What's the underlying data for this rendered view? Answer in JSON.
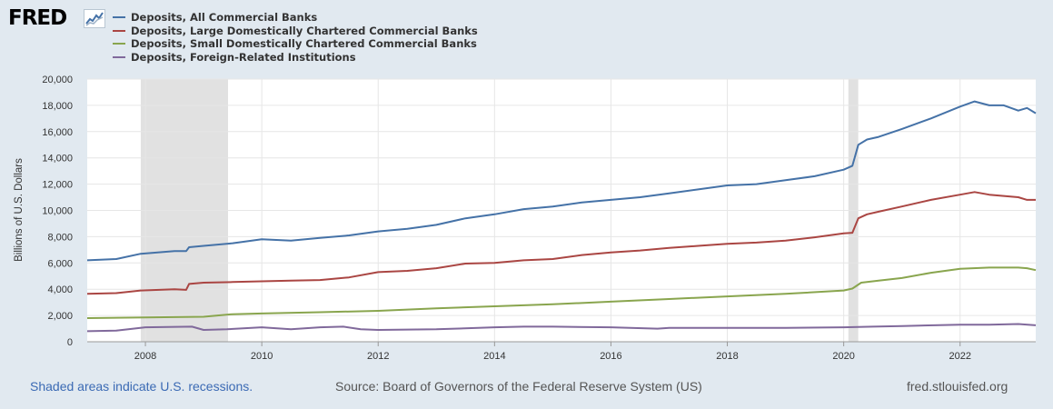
{
  "header": {
    "logo_text": "FRED",
    "logo_icon": "fred-trend-icon"
  },
  "legend": {
    "items": [
      {
        "label": "Deposits, All Commercial Banks",
        "color": "#4572a7"
      },
      {
        "label": "Deposits, Large Domestically Chartered Commercial Banks",
        "color": "#aa4643"
      },
      {
        "label": "Deposits, Small Domestically Chartered Commercial Banks",
        "color": "#89a54e"
      },
      {
        "label": "Deposits, Foreign-Related Institutions",
        "color": "#80699b"
      }
    ]
  },
  "footer": {
    "recession_note": "Shaded areas indicate U.S. recessions.",
    "source": "Source: Board of Governors of the Federal Reserve System (US)",
    "site": "fred.stlouisfed.org"
  },
  "colors": {
    "background": "#e1e9f0",
    "plot_background": "#ffffff",
    "gridline": "#e6e6e6",
    "recession": "#e1e1e1"
  },
  "chart_data": {
    "type": "line",
    "title": "",
    "xlabel": "",
    "ylabel": "Billions of U.S. Dollars",
    "xlim": [
      2007.0,
      2023.3
    ],
    "ylim": [
      0,
      20000
    ],
    "x_ticks": [
      2008,
      2010,
      2012,
      2014,
      2016,
      2018,
      2020,
      2022
    ],
    "y_ticks": [
      0,
      2000,
      4000,
      6000,
      8000,
      10000,
      12000,
      14000,
      16000,
      18000,
      20000
    ],
    "y_tick_labels": [
      "0",
      "2,000",
      "4,000",
      "6,000",
      "8,000",
      "10,000",
      "12,000",
      "14,000",
      "16,000",
      "18,000",
      "20,000"
    ],
    "grid": true,
    "recessions": [
      [
        2007.92,
        2009.42
      ],
      [
        2020.08,
        2020.25
      ]
    ],
    "series": [
      {
        "name": "Deposits, All Commercial Banks",
        "color": "#4572a7",
        "x": [
          2007.0,
          2007.5,
          2007.92,
          2008.5,
          2008.7,
          2008.75,
          2009.0,
          2009.5,
          2010.0,
          2010.5,
          2011.0,
          2011.5,
          2012.0,
          2012.5,
          2013.0,
          2013.5,
          2014.0,
          2014.5,
          2015.0,
          2015.5,
          2016.0,
          2016.5,
          2017.0,
          2017.5,
          2018.0,
          2018.5,
          2019.0,
          2019.5,
          2020.0,
          2020.15,
          2020.25,
          2020.4,
          2020.6,
          2021.0,
          2021.5,
          2022.0,
          2022.25,
          2022.5,
          2022.75,
          2023.0,
          2023.15,
          2023.3
        ],
        "values": [
          6200,
          6300,
          6700,
          6900,
          6900,
          7200,
          7300,
          7500,
          7800,
          7700,
          7900,
          8100,
          8400,
          8600,
          8900,
          9400,
          9700,
          10100,
          10300,
          10600,
          10800,
          11000,
          11300,
          11600,
          11900,
          12000,
          12300,
          12600,
          13100,
          13400,
          15000,
          15400,
          15600,
          16200,
          17000,
          17900,
          18300,
          18000,
          18000,
          17600,
          17800,
          17400
        ]
      },
      {
        "name": "Deposits, Large Domestically Chartered Commercial Banks",
        "color": "#aa4643",
        "x": [
          2007.0,
          2007.5,
          2007.92,
          2008.5,
          2008.7,
          2008.75,
          2009.0,
          2009.5,
          2010.0,
          2010.5,
          2011.0,
          2011.5,
          2012.0,
          2012.5,
          2013.0,
          2013.5,
          2014.0,
          2014.5,
          2015.0,
          2015.5,
          2016.0,
          2016.5,
          2017.0,
          2017.5,
          2018.0,
          2018.5,
          2019.0,
          2019.5,
          2020.0,
          2020.15,
          2020.25,
          2020.4,
          2020.6,
          2021.0,
          2021.5,
          2022.0,
          2022.25,
          2022.5,
          2022.75,
          2023.0,
          2023.15,
          2023.3
        ],
        "values": [
          3650,
          3700,
          3900,
          4000,
          3950,
          4400,
          4500,
          4550,
          4600,
          4650,
          4700,
          4900,
          5300,
          5400,
          5600,
          5950,
          6000,
          6200,
          6300,
          6600,
          6800,
          6950,
          7150,
          7300,
          7450,
          7550,
          7700,
          7950,
          8250,
          8300,
          9400,
          9700,
          9900,
          10300,
          10800,
          11200,
          11400,
          11200,
          11100,
          11000,
          10800,
          10800
        ]
      },
      {
        "name": "Deposits, Small Domestically Chartered Commercial Banks",
        "color": "#89a54e",
        "x": [
          2007.0,
          2008.0,
          2009.0,
          2009.5,
          2010.0,
          2011.0,
          2012.0,
          2013.0,
          2014.0,
          2015.0,
          2016.0,
          2017.0,
          2018.0,
          2019.0,
          2020.0,
          2020.15,
          2020.3,
          2020.6,
          2021.0,
          2021.5,
          2022.0,
          2022.5,
          2023.0,
          2023.15,
          2023.3
        ],
        "values": [
          1800,
          1850,
          1900,
          2100,
          2150,
          2250,
          2350,
          2550,
          2700,
          2850,
          3050,
          3250,
          3450,
          3650,
          3900,
          4050,
          4500,
          4650,
          4850,
          5250,
          5550,
          5650,
          5650,
          5600,
          5450
        ]
      },
      {
        "name": "Deposits, Foreign-Related Institutions",
        "color": "#80699b",
        "x": [
          2007.0,
          2007.5,
          2008.0,
          2008.8,
          2009.0,
          2009.4,
          2010.0,
          2010.5,
          2011.0,
          2011.4,
          2011.7,
          2012.0,
          2013.0,
          2014.0,
          2014.5,
          2015.0,
          2016.0,
          2016.8,
          2017.0,
          2018.0,
          2019.0,
          2020.0,
          2020.5,
          2021.0,
          2022.0,
          2022.5,
          2023.0,
          2023.3
        ],
        "values": [
          800,
          850,
          1100,
          1150,
          900,
          950,
          1100,
          950,
          1100,
          1150,
          950,
          900,
          950,
          1100,
          1150,
          1150,
          1100,
          1000,
          1050,
          1050,
          1050,
          1100,
          1150,
          1200,
          1300,
          1300,
          1350,
          1250
        ]
      }
    ]
  }
}
